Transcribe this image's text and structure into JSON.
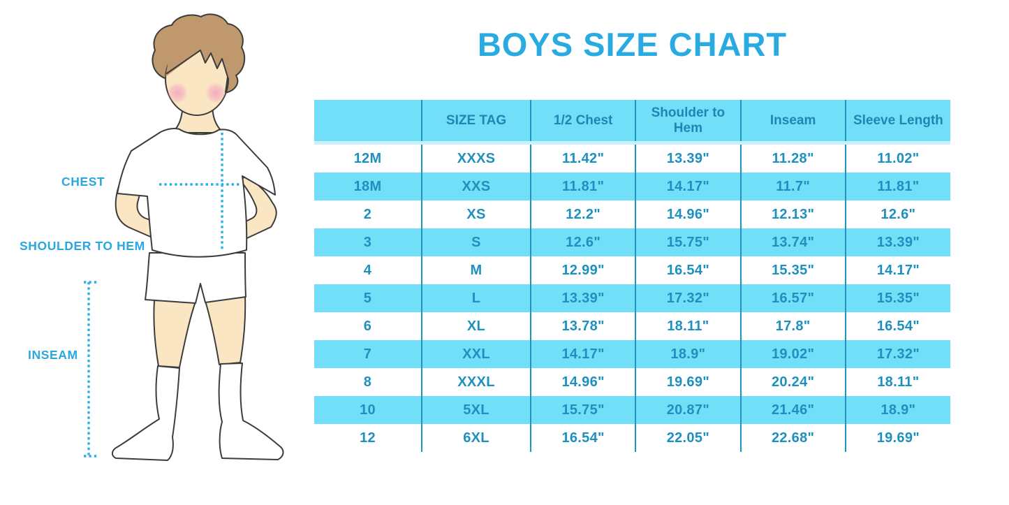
{
  "title": "BOYS SIZE CHART",
  "figure": {
    "labels": {
      "chest": "CHEST",
      "shoulder_to_hem": "SHOULDER TO HEM",
      "inseam": "INSEAM"
    }
  },
  "colors": {
    "accent": "#29ABE2",
    "band": "#72DFF8",
    "band_edge": "#C9F1FC",
    "line": "#1F93C2",
    "th_text": "#1F86B4",
    "td_text": "#1E90C0",
    "label": "#29A7E0",
    "dots": "#2CAFE4",
    "skin": "#FAE6C3",
    "hair": "#C0986E"
  },
  "chart_data": {
    "type": "table",
    "title": "BOYS SIZE CHART",
    "columns": [
      "",
      "SIZE TAG",
      "1/2 Chest",
      "Shoulder to Hem",
      "Inseam",
      "Sleeve Length"
    ],
    "rows": [
      [
        "12M",
        "XXXS",
        "11.42\"",
        "13.39\"",
        "11.28\"",
        "11.02\""
      ],
      [
        "18M",
        "XXS",
        "11.81\"",
        "14.17\"",
        "11.7\"",
        "11.81\""
      ],
      [
        "2",
        "XS",
        "12.2\"",
        "14.96\"",
        "12.13\"",
        "12.6\""
      ],
      [
        "3",
        "S",
        "12.6\"",
        "15.75\"",
        "13.74\"",
        "13.39\""
      ],
      [
        "4",
        "M",
        "12.99\"",
        "16.54\"",
        "15.35\"",
        "14.17\""
      ],
      [
        "5",
        "L",
        "13.39\"",
        "17.32\"",
        "16.57\"",
        "15.35\""
      ],
      [
        "6",
        "XL",
        "13.78\"",
        "18.11\"",
        "17.8\"",
        "16.54\""
      ],
      [
        "7",
        "XXL",
        "14.17\"",
        "18.9\"",
        "19.02\"",
        "17.32\""
      ],
      [
        "8",
        "XXXL",
        "14.96\"",
        "19.69\"",
        "20.24\"",
        "18.11\""
      ],
      [
        "10",
        "5XL",
        "15.75\"",
        "20.87\"",
        "21.46\"",
        "18.9\""
      ],
      [
        "12",
        "6XL",
        "16.54\"",
        "22.05\"",
        "22.68\"",
        "19.69\""
      ]
    ]
  }
}
